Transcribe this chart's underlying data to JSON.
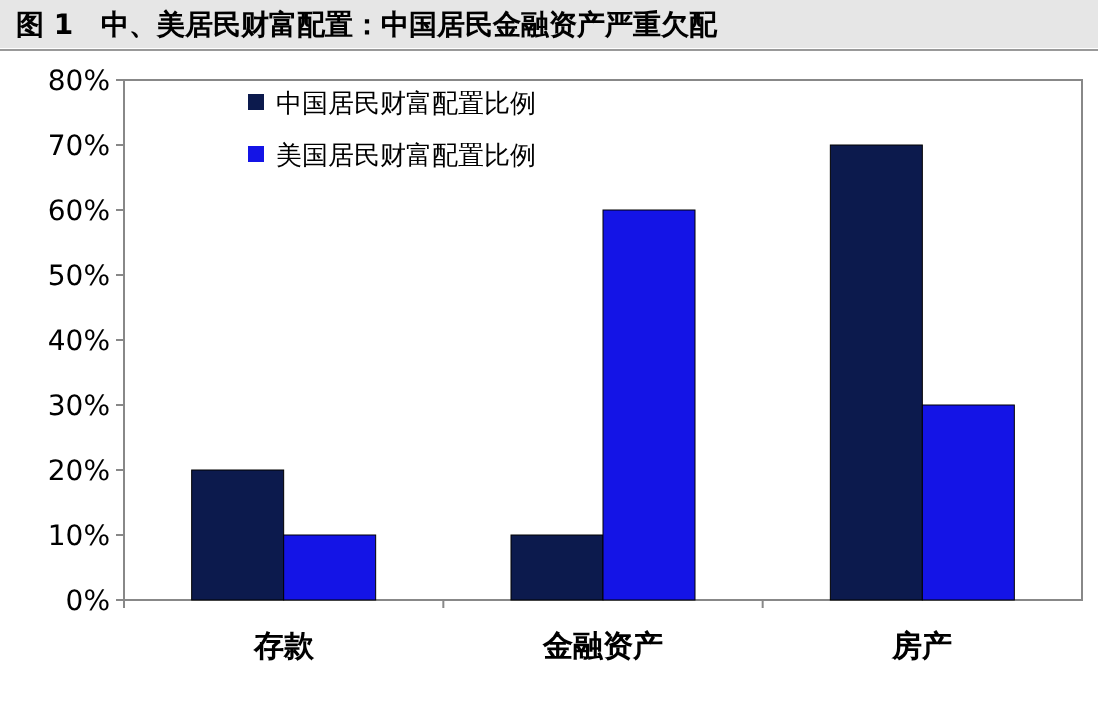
{
  "chart_data": {
    "type": "bar",
    "title": "图 1　中、美居民财富配置：中国居民金融资产严重欠配",
    "categories": [
      "存款",
      "金融资产",
      "房产"
    ],
    "series": [
      {
        "name": "中国居民财富配置比例",
        "color": "#0c1a4d",
        "values": [
          20,
          10,
          70
        ]
      },
      {
        "name": "美国居民财富配置比例",
        "color": "#1414e6",
        "values": [
          10,
          60,
          30
        ]
      }
    ],
    "ylim": [
      0,
      80
    ],
    "yticks": [
      {
        "value": 0,
        "label": "0%"
      },
      {
        "value": 10,
        "label": "10%"
      },
      {
        "value": 20,
        "label": "20%"
      },
      {
        "value": 30,
        "label": "30%"
      },
      {
        "value": 40,
        "label": "40%"
      },
      {
        "value": 50,
        "label": "50%"
      },
      {
        "value": 60,
        "label": "60%"
      },
      {
        "value": 70,
        "label": "70%"
      },
      {
        "value": 80,
        "label": "80%"
      }
    ],
    "legend": "top left"
  }
}
